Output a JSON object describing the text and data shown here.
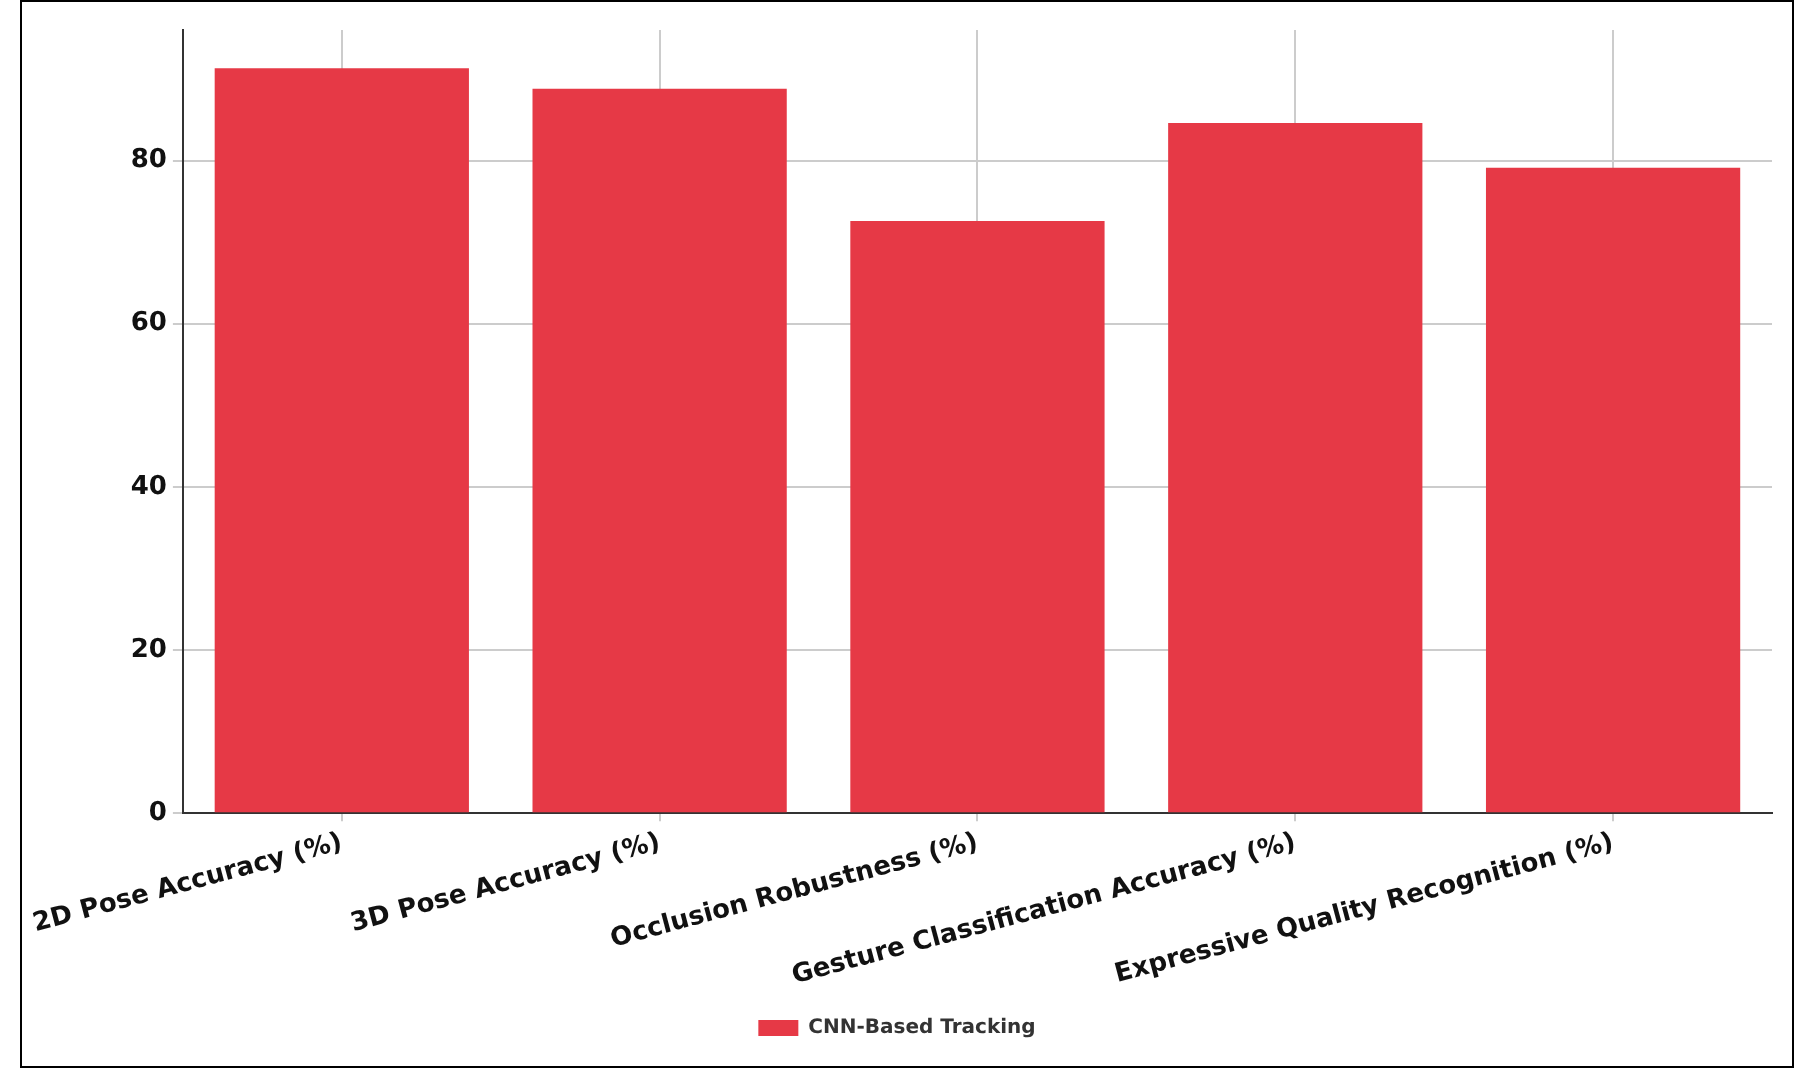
{
  "chart_data": {
    "type": "bar",
    "categories": [
      "2D Pose Accuracy (%)",
      "3D Pose Accuracy (%)",
      "Occlusion Robustness (%)",
      "Gesture Classification Accuracy (%)",
      "Expressive Quality Recognition (%)"
    ],
    "series": [
      {
        "name": "CNN-Based Tracking",
        "color": "#e63946",
        "values": [
          91.3,
          88.8,
          72.6,
          84.6,
          79.1
        ]
      }
    ],
    "ylim": [
      0,
      96
    ],
    "yticks": [
      0,
      20,
      40,
      60,
      80
    ],
    "grid": true,
    "legend": "bottom"
  }
}
